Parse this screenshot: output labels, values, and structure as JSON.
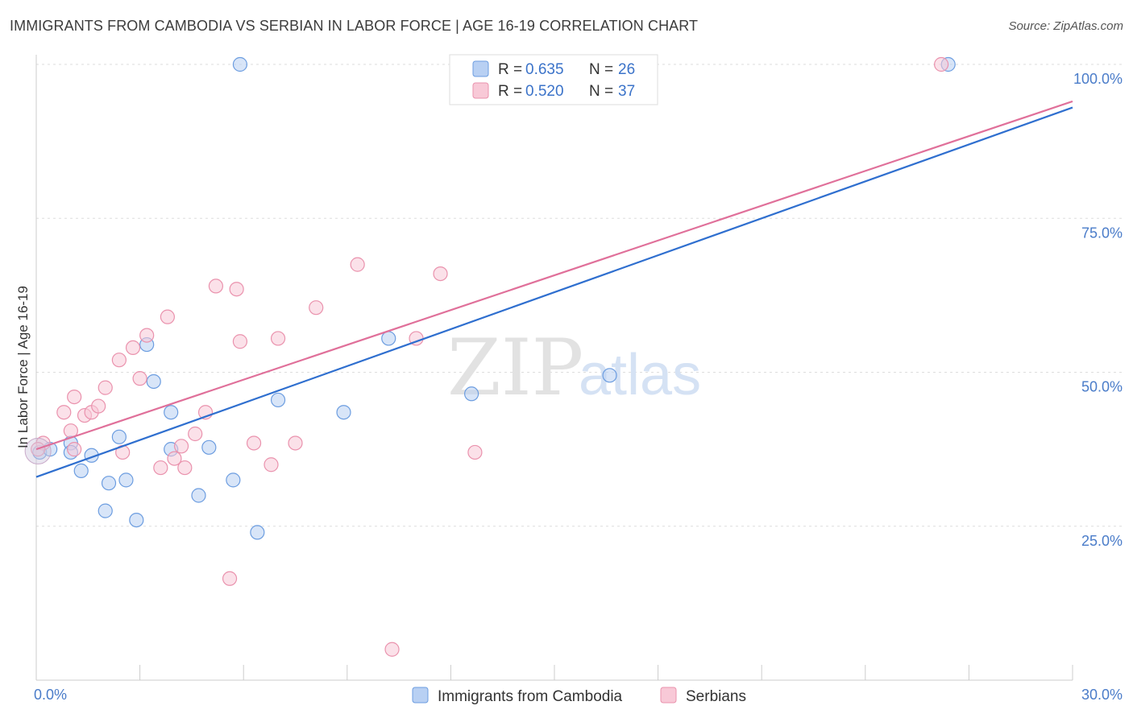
{
  "title": "IMMIGRANTS FROM CAMBODIA VS SERBIAN IN LABOR FORCE | AGE 16-19 CORRELATION CHART",
  "source": "Source: ZipAtlas.com",
  "watermark": {
    "zip": "ZIP",
    "atlas": "atlas"
  },
  "chart_data": {
    "type": "scatter",
    "ylabel": "In Labor Force | Age 16-19",
    "xlim": [
      0,
      30
    ],
    "ylim": [
      0,
      100
    ],
    "x_tick_labels": [
      {
        "value": 0,
        "label": "0.0%"
      },
      {
        "value": 30,
        "label": "30.0%"
      }
    ],
    "y_tick_labels": [
      {
        "value": 25,
        "label": "25.0%"
      },
      {
        "value": 50,
        "label": "50.0%"
      },
      {
        "value": 75,
        "label": "75.0%"
      },
      {
        "value": 100,
        "label": "100.0%"
      }
    ],
    "grid": true,
    "legend_top": [
      {
        "r_label": "R = ",
        "r_value": "0.635",
        "n_label": "N = ",
        "n_value": "26"
      },
      {
        "r_label": "R = ",
        "r_value": "0.520",
        "n_label": "N = ",
        "n_value": "37"
      }
    ],
    "series": [
      {
        "name": "Immigrants from Cambodia",
        "color": "#6c9de0",
        "fill": "#b8d0f3",
        "trend": {
          "x": [
            0,
            30
          ],
          "y": [
            33.0,
            93.0
          ],
          "color": "#2f6fcf"
        },
        "points": [
          [
            0.1,
            37.0
          ],
          [
            0.4,
            37.5
          ],
          [
            1.0,
            38.5
          ],
          [
            1.0,
            37.0
          ],
          [
            1.6,
            36.5
          ],
          [
            1.3,
            34.0
          ],
          [
            2.0,
            27.5
          ],
          [
            2.1,
            32.0
          ],
          [
            2.4,
            39.5
          ],
          [
            2.6,
            32.5
          ],
          [
            2.9,
            26.0
          ],
          [
            3.2,
            54.5
          ],
          [
            3.4,
            48.5
          ],
          [
            3.9,
            43.5
          ],
          [
            3.9,
            37.5
          ],
          [
            4.7,
            30.0
          ],
          [
            5.0,
            37.8
          ],
          [
            5.7,
            32.5
          ],
          [
            5.9,
            100.0
          ],
          [
            6.4,
            24.0
          ],
          [
            7.0,
            45.5
          ],
          [
            8.9,
            43.5
          ],
          [
            10.2,
            55.5
          ],
          [
            12.6,
            46.5
          ],
          [
            16.6,
            49.5
          ],
          [
            26.4,
            100.0
          ]
        ]
      },
      {
        "name": "Serbians",
        "color": "#ea92ad",
        "fill": "#f8c9d7",
        "trend": {
          "x": [
            0,
            30
          ],
          "y": [
            37.5,
            94.0
          ],
          "color": "#e0709a"
        },
        "points": [
          [
            0.2,
            38.5
          ],
          [
            0.8,
            43.5
          ],
          [
            1.0,
            40.5
          ],
          [
            1.1,
            37.5
          ],
          [
            1.1,
            46.0
          ],
          [
            1.4,
            43.0
          ],
          [
            1.6,
            43.5
          ],
          [
            1.8,
            44.5
          ],
          [
            2.0,
            47.5
          ],
          [
            2.4,
            52.0
          ],
          [
            2.5,
            37.0
          ],
          [
            2.8,
            54.0
          ],
          [
            3.0,
            49.0
          ],
          [
            3.2,
            56.0
          ],
          [
            3.6,
            34.5
          ],
          [
            3.8,
            59.0
          ],
          [
            4.0,
            36.0
          ],
          [
            4.2,
            38.0
          ],
          [
            4.3,
            34.5
          ],
          [
            4.6,
            40.0
          ],
          [
            4.9,
            43.5
          ],
          [
            5.2,
            64.0
          ],
          [
            5.6,
            16.5
          ],
          [
            5.8,
            63.5
          ],
          [
            5.9,
            55.0
          ],
          [
            6.3,
            38.5
          ],
          [
            6.8,
            35.0
          ],
          [
            7.0,
            55.5
          ],
          [
            7.5,
            38.5
          ],
          [
            8.1,
            60.5
          ],
          [
            9.3,
            67.5
          ],
          [
            10.3,
            5.0
          ],
          [
            11.0,
            55.5
          ],
          [
            11.7,
            66.0
          ],
          [
            12.7,
            37.0
          ],
          [
            26.2,
            100.0
          ],
          [
            0.05,
            37.5
          ]
        ]
      }
    ]
  }
}
